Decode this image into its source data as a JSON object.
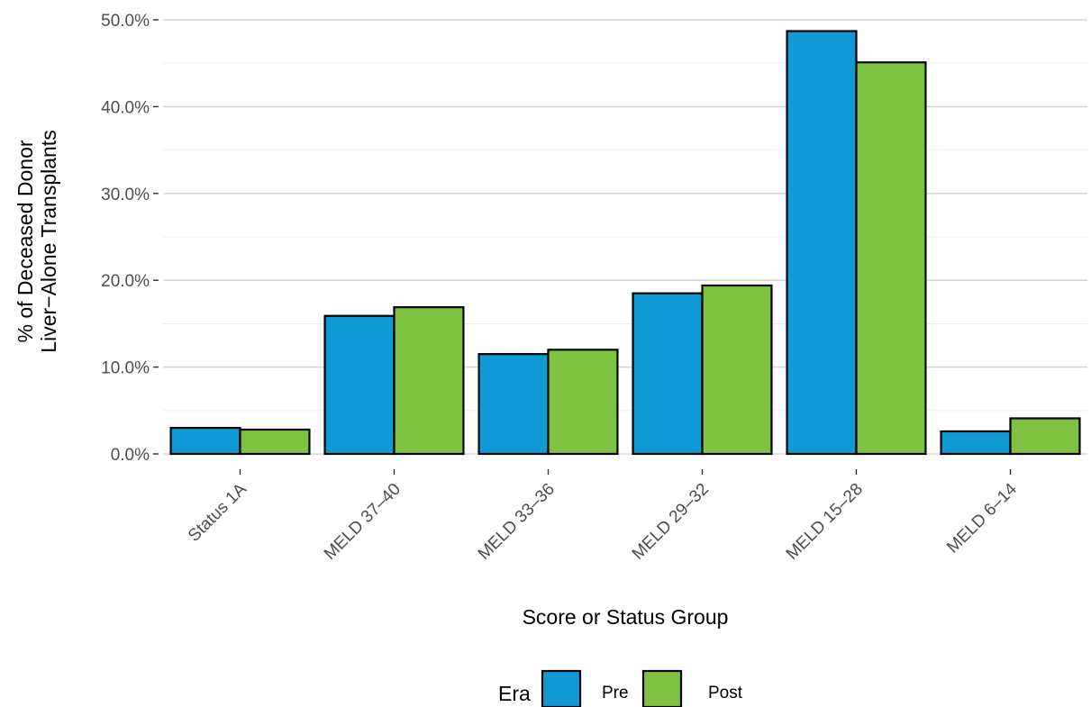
{
  "chart_data": {
    "type": "bar",
    "categories": [
      "Status 1A",
      "MELD 37–40",
      "MELD 33–36",
      "MELD 29–32",
      "MELD 15–28",
      "MELD 6–14"
    ],
    "series": [
      {
        "name": "Pre",
        "color": "#1199d6",
        "values": [
          3.0,
          15.9,
          11.5,
          18.5,
          48.7,
          2.6
        ]
      },
      {
        "name": "Post",
        "color": "#7fc241",
        "values": [
          2.8,
          16.9,
          12.0,
          19.4,
          45.1,
          4.1
        ]
      }
    ],
    "title": "",
    "xlabel": "Score or Status Group",
    "ylabel": [
      "% of Deceased Donor",
      "Liver−Alone Transplants"
    ],
    "ylim": [
      0,
      50
    ],
    "yticks": [
      0,
      10,
      20,
      30,
      40,
      50
    ],
    "ytick_labels": [
      "0.0%",
      "10.0%",
      "20.0%",
      "30.0%",
      "40.0%",
      "50.0%"
    ],
    "grid": true,
    "legend": {
      "title": "Era",
      "position": "bottom"
    }
  }
}
